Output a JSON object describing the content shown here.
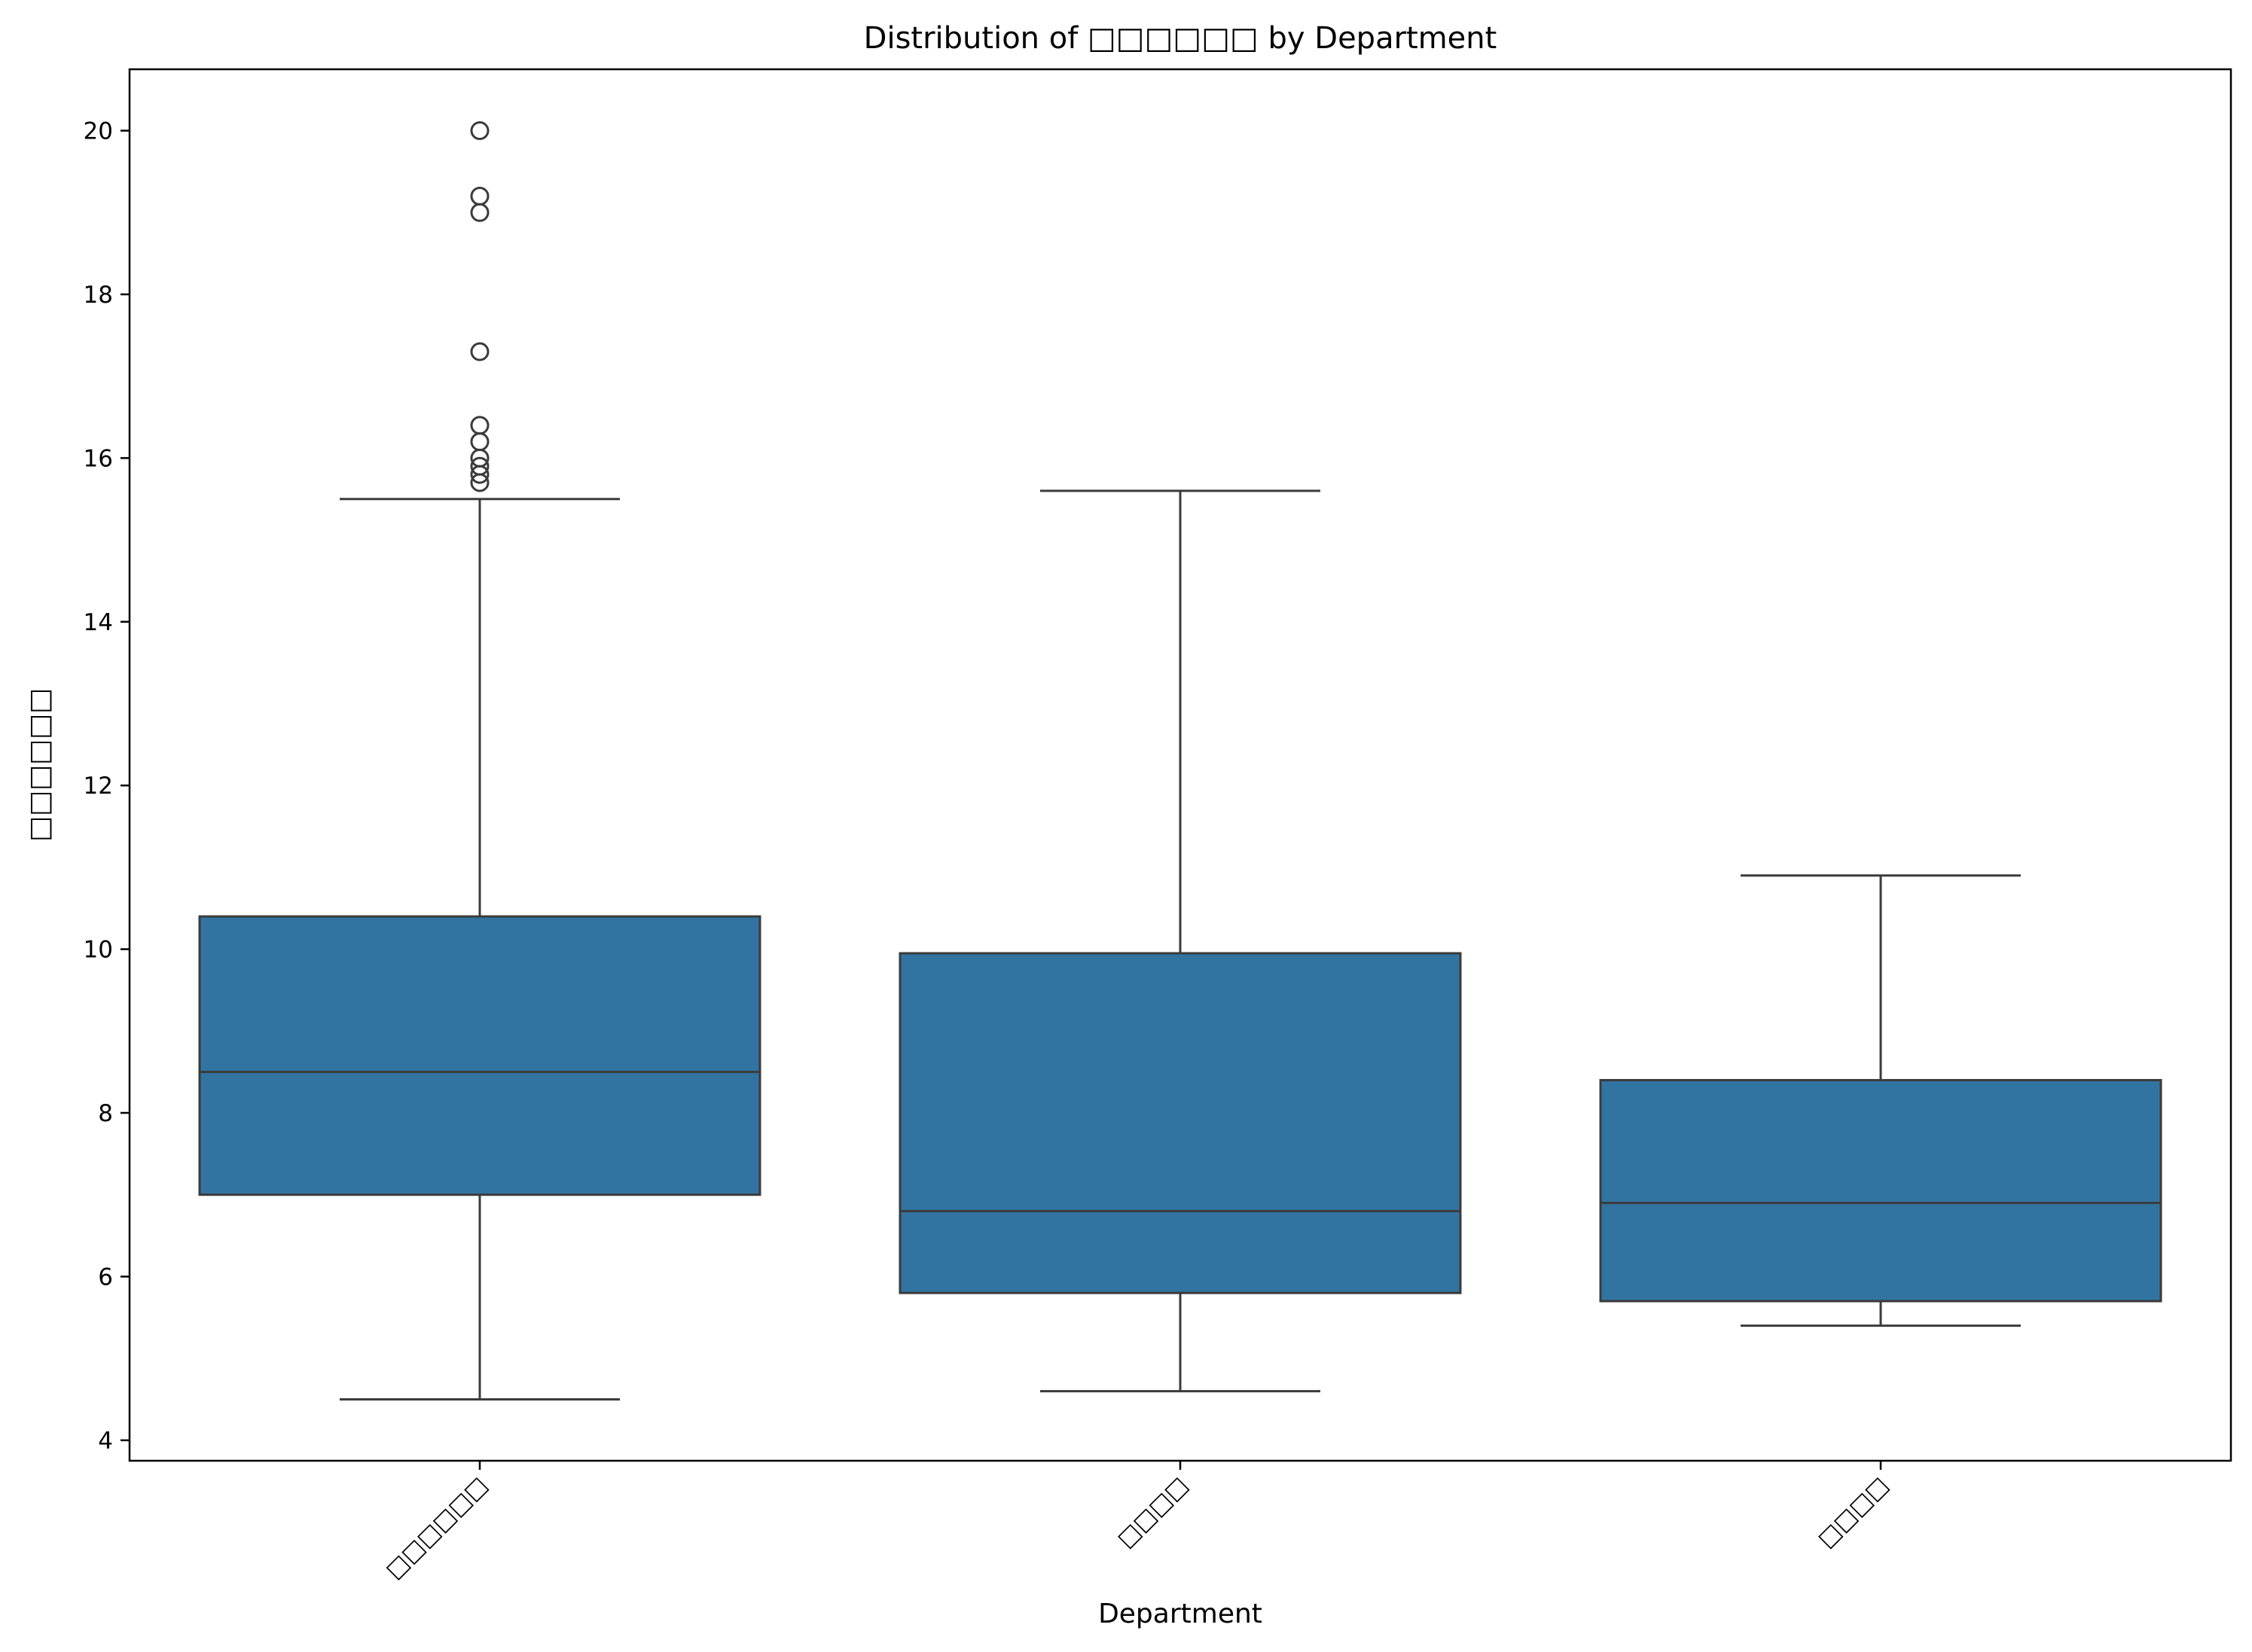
{
  "chart_data": {
    "type": "box",
    "title": "Distribution of □□□□□□ by Department",
    "xlabel": "Department",
    "ylabel": "□□□□□□",
    "ylim": [
      3.75,
      20.75
    ],
    "yticks": [
      4,
      6,
      8,
      10,
      12,
      14,
      16,
      18,
      20
    ],
    "grid": false,
    "box_color": "#3274a1",
    "line_color": "#3b3b3b",
    "categories": [
      "□□□□□□",
      "□□□□",
      "□□□□"
    ],
    "boxes": [
      {
        "category": "□□□□□□",
        "whisker_low": 4.5,
        "q1": 7.0,
        "median": 8.5,
        "q3": 10.4,
        "whisker_high": 15.5,
        "outliers": [
          15.7,
          15.8,
          15.9,
          16.0,
          16.2,
          16.4,
          17.3,
          19.0,
          19.2,
          20.0
        ]
      },
      {
        "category": "□□□□",
        "whisker_low": 4.6,
        "q1": 5.8,
        "median": 6.8,
        "q3": 9.95,
        "whisker_high": 15.6,
        "outliers": []
      },
      {
        "category": "□□□□",
        "whisker_low": 5.4,
        "q1": 5.7,
        "median": 6.9,
        "q3": 8.4,
        "whisker_high": 10.9,
        "outliers": []
      }
    ]
  }
}
